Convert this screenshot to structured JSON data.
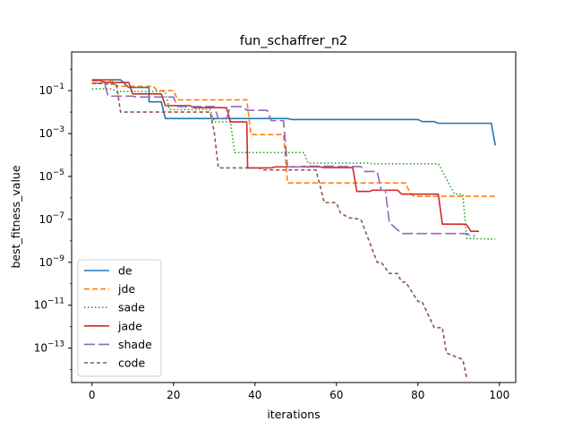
{
  "chart_data": {
    "type": "line",
    "title": "fun_schaffrer_n2",
    "xlabel": "iterations",
    "ylabel": "best_fitness_value",
    "yscale": "log",
    "xlim": [
      -5,
      104
    ],
    "ylim_exp": [
      -14.6,
      0.8
    ],
    "xticks": [
      0,
      20,
      40,
      60,
      80,
      100
    ],
    "yticks_exp": [
      -13,
      -11,
      -9,
      -7,
      -5,
      -3,
      -1
    ],
    "legend_position": "lower-left",
    "grid": false,
    "series": [
      {
        "name": "de",
        "color": "#1f77b4",
        "dash": "solid",
        "points": [
          [
            0,
            0.32
          ],
          [
            7,
            0.32
          ],
          [
            9,
            0.14
          ],
          [
            14,
            0.14
          ],
          [
            14,
            0.03
          ],
          [
            17,
            0.03
          ],
          [
            18,
            0.005
          ],
          [
            48,
            0.005
          ],
          [
            49,
            0.0045
          ],
          [
            77,
            0.0045
          ],
          [
            80,
            0.0045
          ],
          [
            81,
            0.0036
          ],
          [
            84,
            0.0036
          ],
          [
            85,
            0.003
          ],
          [
            98,
            0.003
          ],
          [
            99,
            0.00028
          ]
        ]
      },
      {
        "name": "jde",
        "color": "#ff7f0e",
        "dash": "6,3",
        "points": [
          [
            0,
            0.29
          ],
          [
            5,
            0.29
          ],
          [
            6,
            0.16
          ],
          [
            15,
            0.16
          ],
          [
            16,
            0.1
          ],
          [
            20,
            0.1
          ],
          [
            21,
            0.037
          ],
          [
            38,
            0.037
          ],
          [
            39,
            0.0009
          ],
          [
            47,
            0.0009
          ],
          [
            48,
            5e-06
          ],
          [
            77,
            5e-06
          ],
          [
            78,
            1.7e-06
          ],
          [
            79,
            1.2e-06
          ],
          [
            99,
            1.2e-06
          ]
        ]
      },
      {
        "name": "sade",
        "color": "#2ca02c",
        "dash": "1.5,2.5",
        "points": [
          [
            0,
            0.12
          ],
          [
            5,
            0.12
          ],
          [
            6,
            0.09
          ],
          [
            18,
            0.09
          ],
          [
            19,
            0.013
          ],
          [
            29,
            0.013
          ],
          [
            30,
            0.0035
          ],
          [
            34,
            0.0035
          ],
          [
            35,
            0.00013
          ],
          [
            52,
            0.00013
          ],
          [
            53,
            4.2e-05
          ],
          [
            68,
            4.2e-05
          ],
          [
            69,
            3.9e-05
          ],
          [
            85,
            3.9e-05
          ],
          [
            89,
            1.5e-06
          ],
          [
            91,
            1.5e-06
          ],
          [
            92,
            1.3e-08
          ],
          [
            99,
            1.2e-08
          ]
        ]
      },
      {
        "name": "jade",
        "color": "#d62728",
        "dash": "solid",
        "points": [
          [
            0,
            0.3
          ],
          [
            2,
            0.3
          ],
          [
            3,
            0.24
          ],
          [
            9,
            0.24
          ],
          [
            10,
            0.07
          ],
          [
            17,
            0.07
          ],
          [
            18,
            0.02
          ],
          [
            24,
            0.02
          ],
          [
            25,
            0.016
          ],
          [
            33,
            0.016
          ],
          [
            34,
            0.0035
          ],
          [
            38,
            0.0035
          ],
          [
            38.2,
            2.5e-05
          ],
          [
            44,
            2.5e-05
          ],
          [
            45,
            2.8e-05
          ],
          [
            56,
            2.8e-05
          ],
          [
            57,
            2.6e-05
          ],
          [
            64,
            2.6e-05
          ],
          [
            65,
            2e-06
          ],
          [
            68,
            2e-06
          ],
          [
            69,
            2.3e-06
          ],
          [
            75,
            2.3e-06
          ],
          [
            76,
            1.5e-06
          ],
          [
            85,
            1.5e-06
          ],
          [
            86,
            6e-08
          ],
          [
            91,
            6e-08
          ],
          [
            92,
            5.5e-08
          ],
          [
            93,
            2.8e-08
          ],
          [
            95,
            2.8e-08
          ]
        ]
      },
      {
        "name": "shade",
        "color": "#9467bd",
        "dash": "12,4",
        "points": [
          [
            0,
            0.22
          ],
          [
            3,
            0.22
          ],
          [
            4,
            0.055
          ],
          [
            10,
            0.055
          ],
          [
            11,
            0.05
          ],
          [
            20,
            0.05
          ],
          [
            21,
            0.018
          ],
          [
            30,
            0.018
          ],
          [
            31,
            0.005
          ],
          [
            33,
            0.005
          ],
          [
            34,
            0.018
          ],
          [
            37,
            0.018
          ],
          [
            38,
            0.012
          ],
          [
            43,
            0.012
          ],
          [
            44,
            0.004
          ],
          [
            47,
            0.004
          ],
          [
            48,
            2.8e-05
          ],
          [
            51,
            2.8e-05
          ],
          [
            52,
            3e-05
          ],
          [
            60,
            3e-05
          ],
          [
            61,
            2.9e-05
          ],
          [
            66,
            2.9e-05
          ],
          [
            67,
            1.7e-05
          ],
          [
            70,
            1.7e-05
          ],
          [
            71,
            2.3e-06
          ],
          [
            72,
            2.3e-06
          ],
          [
            73,
            7e-08
          ],
          [
            76,
            2.2e-08
          ],
          [
            86,
            2.2e-08
          ],
          [
            92,
            2.2e-08
          ],
          [
            93,
            1.7e-08
          ],
          [
            94,
            1.7e-08
          ]
        ]
      },
      {
        "name": "code",
        "color": "#8c564b",
        "dash": "4,3",
        "points": [
          [
            0,
            0.22
          ],
          [
            2,
            0.22
          ],
          [
            3,
            0.2
          ],
          [
            6,
            0.2
          ],
          [
            7,
            0.01
          ],
          [
            29,
            0.01
          ],
          [
            30,
            0.0012
          ],
          [
            31,
            2.5e-05
          ],
          [
            41,
            2.5e-05
          ],
          [
            42,
            2e-05
          ],
          [
            55,
            2e-05
          ],
          [
            57,
            6e-07
          ],
          [
            60,
            6e-07
          ],
          [
            61,
            2e-07
          ],
          [
            63,
            1.2e-07
          ],
          [
            66,
            1e-07
          ],
          [
            68,
            1e-08
          ],
          [
            70,
            1e-09
          ],
          [
            71,
            1e-09
          ],
          [
            73,
            3e-10
          ],
          [
            75,
            3e-10
          ],
          [
            76,
            1.2e-10
          ],
          [
            77,
            1.2e-10
          ],
          [
            80,
            1.5e-11
          ],
          [
            81,
            1.5e-11
          ],
          [
            84,
            9e-13
          ],
          [
            86,
            9e-13
          ],
          [
            87,
            6e-14
          ],
          [
            88,
            5e-14
          ],
          [
            91,
            3e-14
          ],
          [
            92,
            4e-15
          ]
        ]
      }
    ]
  }
}
